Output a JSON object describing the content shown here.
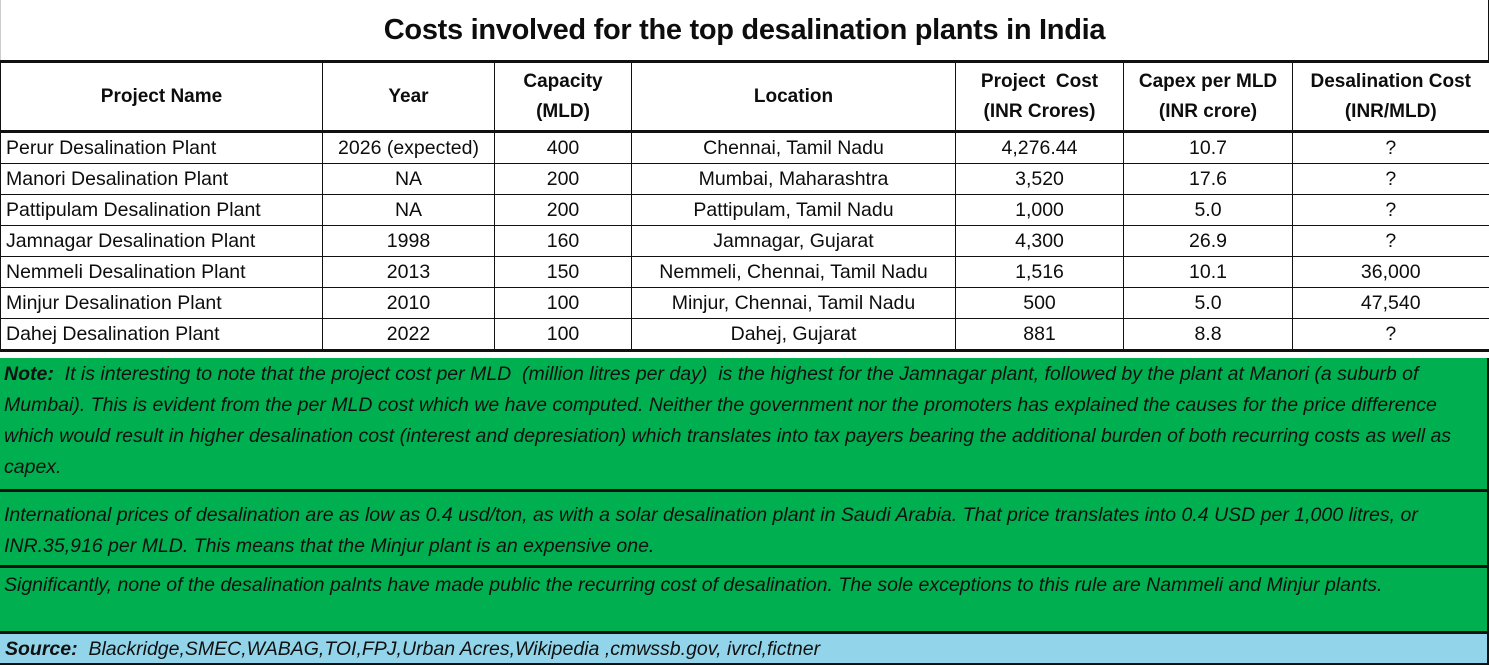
{
  "title": "Costs involved for the top desalination plants in India",
  "table": {
    "headers": [
      [
        "Project Name"
      ],
      [
        "Year"
      ],
      [
        "Capacity",
        "(MLD)"
      ],
      [
        "Location"
      ],
      [
        "Project  Cost",
        "(INR Crores)"
      ],
      [
        "Capex per MLD",
        "(INR crore)"
      ],
      [
        "Desalination Cost",
        "(INR/MLD)"
      ]
    ],
    "rows": [
      [
        "Perur Desalination Plant",
        "2026 (expected)",
        "400",
        "Chennai, Tamil Nadu",
        "4,276.44",
        "10.7",
        "?"
      ],
      [
        "Manori Desalination Plant",
        "NA",
        "200",
        "Mumbai, Maharashtra",
        "3,520",
        "17.6",
        "?"
      ],
      [
        "Pattipulam Desalination Plant",
        "NA",
        "200",
        "Pattipulam, Tamil Nadu",
        "1,000",
        "5.0",
        "?"
      ],
      [
        "Jamnagar Desalination Plant",
        "1998",
        "160",
        "Jamnagar, Gujarat",
        "4,300",
        "26.9",
        "?"
      ],
      [
        "Nemmeli Desalination Plant",
        "2013",
        "150",
        "Nemmeli, Chennai, Tamil Nadu",
        "1,516",
        "10.1",
        "36,000"
      ],
      [
        "Minjur Desalination Plant",
        "2010",
        "100",
        "Minjur, Chennai, Tamil Nadu",
        "500",
        "5.0",
        "47,540"
      ],
      [
        "Dahej Desalination Plant",
        "2022",
        "100",
        "Dahej, Gujarat",
        "881",
        "8.8",
        "?"
      ]
    ]
  },
  "notes": {
    "note1_label": "Note:",
    "note1_text": "  It is interesting to note that the project cost per MLD  (million litres per day)  is the highest for the Jamnagar plant, followed by the plant at Manori (a suburb of Mumbai). This is evident from the per MLD cost which we have computed. Neither the government nor the promoters has explained the causes for the price difference which would result in higher desalination cost (interest and depresiation) which translates into tax payers bearing the additional burden of both recurring costs as well as capex.",
    "note2_text": "International prices of desalination are as low as  0.4 usd/ton, as with a solar desalination plant in Saudi Arabia.  That price translates into 0.4 USD per 1,000 litres, or INR.35,916 per MLD. This means that the Minjur plant is an expensive one.",
    "note3_text": "Significantly, none of the desalination palnts have made public the recurring cost of desalination. The sole exceptions to this rule are Nammeli and Minjur plants."
  },
  "source": {
    "label": "Source:",
    "text": "  Blackridge,SMEC,WABAG,TOI,FPJ,Urban Acres,Wikipedia ,cmwssb.gov, ivrcl,fictner"
  },
  "colors": {
    "note_background": "#00b050",
    "source_background": "#92d5ea"
  }
}
